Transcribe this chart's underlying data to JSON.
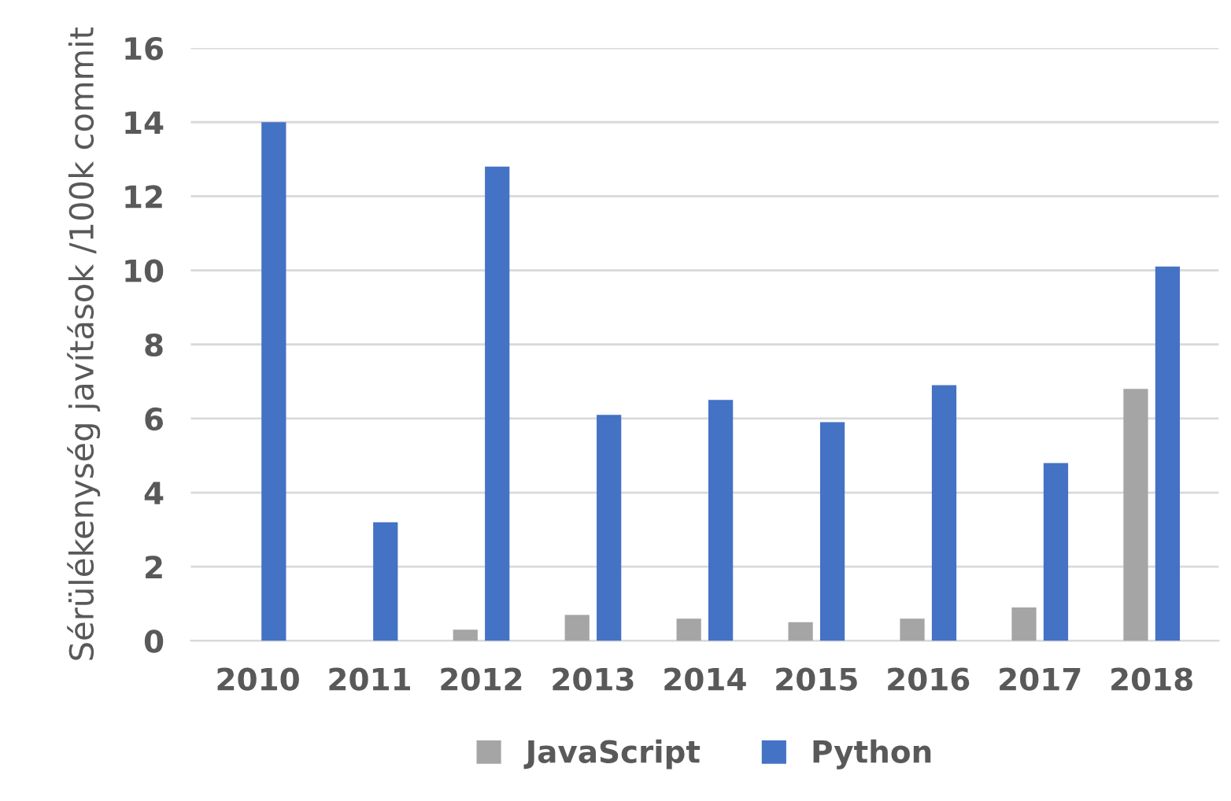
{
  "chart_data": {
    "type": "bar",
    "ylabel": "Sérülékenység javítások /100k commit",
    "categories": [
      "2010",
      "2011",
      "2012",
      "2013",
      "2014",
      "2015",
      "2016",
      "2017",
      "2018"
    ],
    "series": [
      {
        "name": "JavaScript",
        "color": "#a5a5a5",
        "values": [
          0,
          0,
          0.3,
          0.7,
          0.6,
          0.5,
          0.6,
          0.9,
          6.8
        ]
      },
      {
        "name": "Python",
        "color": "#4472c4",
        "values": [
          14.0,
          3.2,
          12.8,
          6.1,
          6.5,
          5.9,
          6.9,
          4.8,
          10.1
        ]
      }
    ],
    "ylim": [
      0,
      16
    ],
    "yticks": [
      0,
      2,
      4,
      6,
      8,
      10,
      12,
      14,
      16
    ],
    "grid": "y",
    "legend": "bottom"
  }
}
